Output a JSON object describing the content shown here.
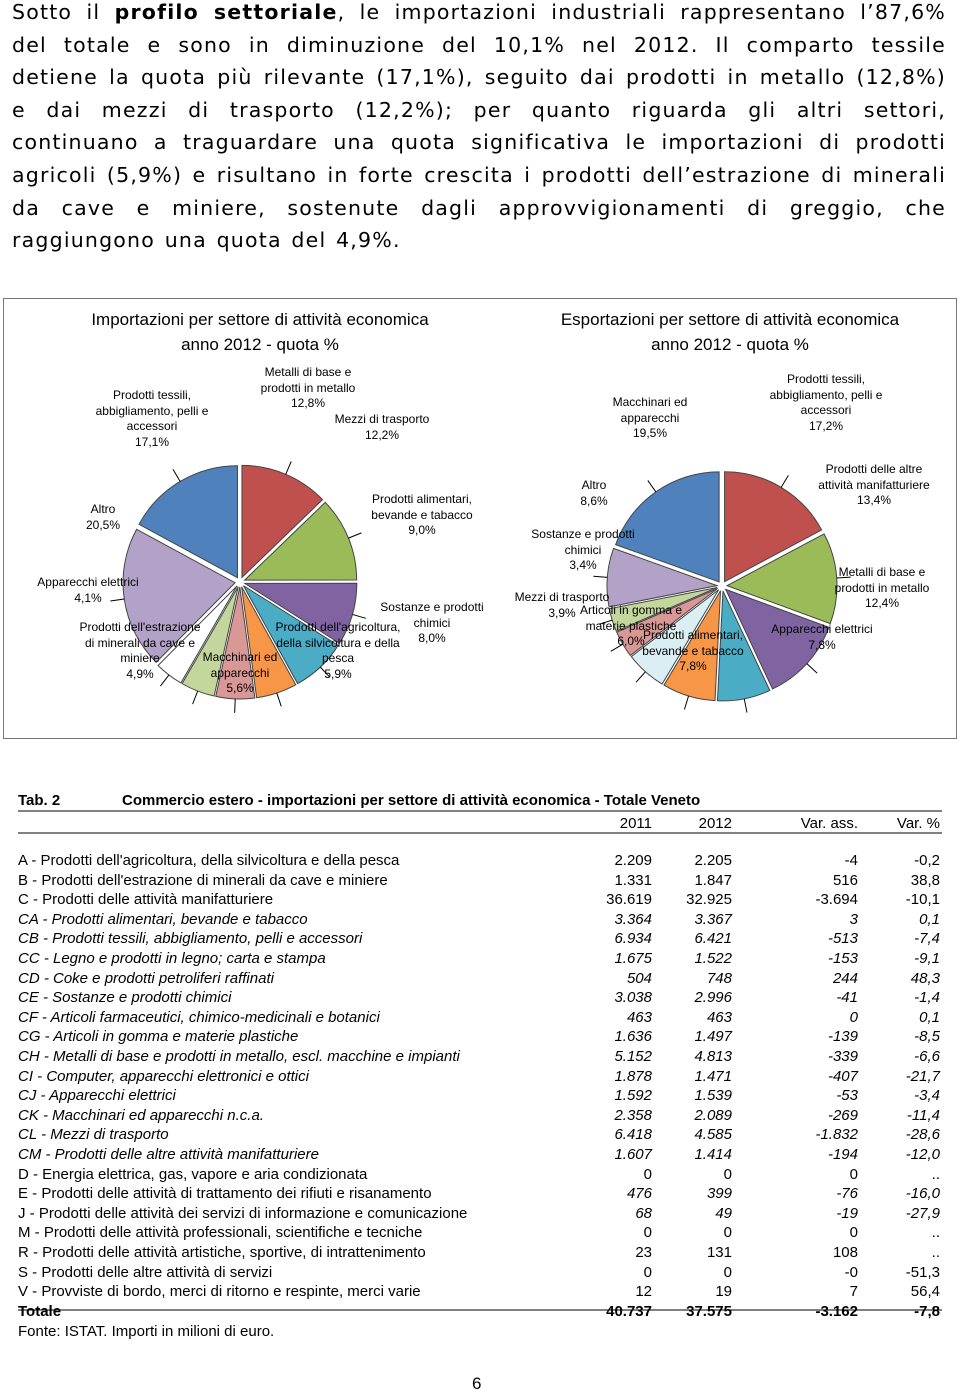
{
  "paragraph": {
    "before": "Sotto il ",
    "bold": "profilo settoriale",
    "after": ", le importazioni industriali rappresentano l’87,6% del totale e sono in diminuzione del 10,1% nel 2012. Il comparto tessile detiene la quota più rilevante (17,1%), seguito dai prodotti in metallo (12,8%) e dai mezzi di trasporto (12,2%); per quanto riguarda gli altri settori, continuano a traguardare una quota significativa le importazioni di prodotti agricoli (5,9%) e risultano in forte crescita i prodotti dell’estrazione di minerali da cave e miniere, sostenute dagli approvvigionamenti di greggio, che raggiungono una quota del 4,9%."
  },
  "chart_data": [
    {
      "type": "pie",
      "title": "Importazioni per settore di attività economica",
      "subtitle": "anno 2012 - quota %",
      "categories": [
        "Metalli di base e prodotti in metallo",
        "Mezzi di trasporto",
        "Prodotti alimentari, bevande e tabacco",
        "Sostanze e prodotti chimici",
        "Prodotti dell'agricoltura, della silvicoltura e della pesca",
        "Macchinari ed apparecchi",
        "Prodotti dell'estrazione di minerali da cave e miniere",
        "Apparecchi elettrici",
        "Altro",
        "Prodotti tessili, abbigliamento, pelli e accessori"
      ],
      "values": [
        12.8,
        12.2,
        9.0,
        8.0,
        5.9,
        5.6,
        4.9,
        4.1,
        20.5,
        17.1
      ],
      "value_labels": [
        "12,8%",
        "12,2%",
        "9,0%",
        "8,0%",
        "5,9%",
        "5,6%",
        "4,9%",
        "4,1%",
        "20,5%",
        "17,1%"
      ],
      "colors": [
        "#c0504d",
        "#9bbb59",
        "#8064a2",
        "#4bacc6",
        "#f79646",
        "#d99795",
        "#c3d69b",
        "#ffffff",
        "#b3a2c7",
        "#4f81bd"
      ]
    },
    {
      "type": "pie",
      "title": "Esportazioni per settore di attività economica",
      "subtitle": "anno 2012 - quota %",
      "categories": [
        "Prodotti tessili, abbigliamento, pelli e accessori",
        "Prodotti delle altre attività manifatturiere",
        "Metalli di base e prodotti in metallo",
        "Apparecchi elettrici",
        "Prodotti alimentari, bevande e tabacco",
        "Articoli in gomma e materie plastiche",
        "Mezzi di trasporto",
        "Sostanze e prodotti chimici",
        "Altro",
        "Macchinari ed apparecchi"
      ],
      "values": [
        17.2,
        13.4,
        12.4,
        7.8,
        7.8,
        6.0,
        3.9,
        3.4,
        8.6,
        19.5
      ],
      "value_labels": [
        "17,2%",
        "13,4%",
        "12,4%",
        "7,8%",
        "7,8%",
        "6,0%",
        "3,9%",
        "3,4%",
        "8,6%",
        "19,5%"
      ],
      "colors": [
        "#c0504d",
        "#9bbb59",
        "#8064a2",
        "#4bacc6",
        "#f79646",
        "#dbeef4",
        "#d99795",
        "#c3d69b",
        "#b3a2c7",
        "#4f81bd"
      ]
    }
  ],
  "table": {
    "label": "Tab. 2",
    "title": "Commercio estero - importazioni per settore di attività economica - Totale Veneto",
    "columns": [
      "2011",
      "2012",
      "Var. ass.",
      "Var. %"
    ],
    "rows": [
      [
        "A - Prodotti dell'agricoltura, della silvicoltura e della pesca",
        "2.209",
        "2.205",
        "-4",
        "-0,2"
      ],
      [
        "B - Prodotti dell'estrazione di minerali da cave e miniere",
        "1.331",
        "1.847",
        "516",
        "38,8"
      ],
      [
        "C - Prodotti delle attività manifatturiere",
        "36.619",
        "32.925",
        "-3.694",
        "-10,1"
      ],
      [
        "CA - Prodotti alimentari, bevande e tabacco",
        "3.364",
        "3.367",
        "3",
        "0,1"
      ],
      [
        "CB - Prodotti tessili, abbigliamento, pelli e accessori",
        "6.934",
        "6.421",
        "-513",
        "-7,4"
      ],
      [
        "CC - Legno e prodotti in legno; carta e stampa",
        "1.675",
        "1.522",
        "-153",
        "-9,1"
      ],
      [
        "CD - Coke e prodotti petroliferi raffinati",
        "504",
        "748",
        "244",
        "48,3"
      ],
      [
        "CE - Sostanze e prodotti chimici",
        "3.038",
        "2.996",
        "-41",
        "-1,4"
      ],
      [
        "CF - Articoli farmaceutici, chimico-medicinali e botanici",
        "463",
        "463",
        "0",
        "0,1"
      ],
      [
        "CG - Articoli in gomma e materie plastiche",
        "1.636",
        "1.497",
        "-139",
        "-8,5"
      ],
      [
        "CH - Metalli di base e prodotti in metallo, escl. macchine e impianti",
        "5.152",
        "4.813",
        "-339",
        "-6,6"
      ],
      [
        "CI - Computer, apparecchi elettronici e ottici",
        "1.878",
        "1.471",
        "-407",
        "-21,7"
      ],
      [
        "CJ - Apparecchi elettrici",
        "1.592",
        "1.539",
        "-53",
        "-3,4"
      ],
      [
        "CK - Macchinari ed apparecchi n.c.a.",
        "2.358",
        "2.089",
        "-269",
        "-11,4"
      ],
      [
        "CL - Mezzi di trasporto",
        "6.418",
        "4.585",
        "-1.832",
        "-28,6"
      ],
      [
        "CM - Prodotti delle altre attività manifatturiere",
        "1.607",
        "1.414",
        "-194",
        "-12,0"
      ],
      [
        "D - Energia elettrica, gas, vapore e aria condizionata",
        "0",
        "0",
        "0",
        ".."
      ],
      [
        "E - Prodotti delle attività di trattamento dei rifiuti e risanamento",
        "476",
        "399",
        "-76",
        "-16,0"
      ],
      [
        "J - Prodotti delle attività dei servizi di informazione e comunicazione",
        "68",
        "49",
        "-19",
        "-27,9"
      ],
      [
        "M - Prodotti delle attività professionali, scientifiche e tecniche",
        "0",
        "0",
        "0",
        ".."
      ],
      [
        "R - Prodotti delle attività artistiche, sportive, di intrattenimento",
        "23",
        "131",
        "108",
        ".."
      ],
      [
        "S - Prodotti delle altre attività di servizi",
        "0",
        "0",
        "-0",
        "-51,3"
      ],
      [
        "V - Provviste di bordo, merci di ritorno e respinte, merci varie",
        "12",
        "19",
        "7",
        "56,4"
      ],
      [
        "Totale",
        "40.737",
        "37.575",
        "-3.162",
        "-7,8"
      ]
    ]
  },
  "source": "Fonte: ISTAT. Importi in milioni di euro.",
  "page_number": "6"
}
